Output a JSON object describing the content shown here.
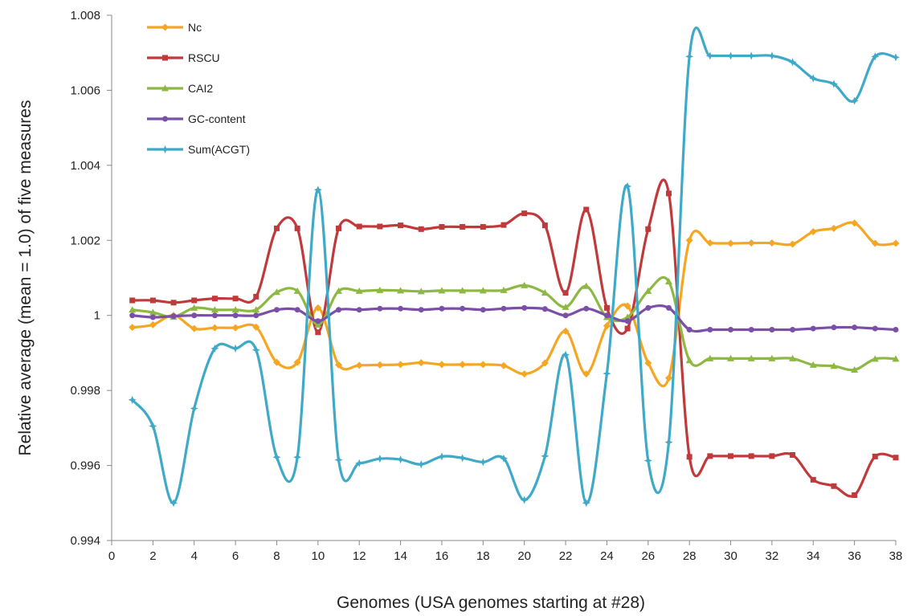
{
  "chart_data": {
    "type": "line",
    "xlabel": "Genomes (USA genomes starting at #28)",
    "ylabel": "Relative average (mean = 1.0) of five measures",
    "xlim": [
      0,
      38
    ],
    "ylim": [
      0.994,
      1.008
    ],
    "x_ticks": [
      "0",
      "2",
      "4",
      "6",
      "8",
      "10",
      "12",
      "14",
      "16",
      "18",
      "20",
      "22",
      "24",
      "26",
      "28",
      "30",
      "32",
      "34",
      "36",
      "38"
    ],
    "y_ticks": [
      "0.994",
      "0.996",
      "0.998",
      "1",
      "1.002",
      "1.004",
      "1.006",
      "1.008"
    ],
    "grid": false,
    "legend_position": "top-left",
    "x": [
      1,
      2,
      3,
      4,
      5,
      6,
      7,
      8,
      9,
      10,
      11,
      12,
      13,
      14,
      15,
      16,
      17,
      18,
      19,
      20,
      21,
      22,
      23,
      24,
      25,
      26,
      27,
      28,
      29,
      30,
      31,
      32,
      33,
      34,
      35,
      36,
      37,
      38
    ],
    "series": [
      {
        "name": "Nc",
        "color": "#F5A623",
        "marker": "diamond",
        "values": [
          0.99968,
          0.99975,
          1.0,
          0.99965,
          0.99967,
          0.99967,
          0.99969,
          0.99875,
          0.99875,
          1.0002,
          0.99868,
          0.99867,
          0.99868,
          0.99869,
          0.99874,
          0.99869,
          0.99869,
          0.99869,
          0.99866,
          0.99844,
          0.99873,
          0.99958,
          0.99844,
          0.99972,
          1.00025,
          0.99873,
          0.99833,
          1.002,
          1.00193,
          1.00192,
          1.00193,
          1.00193,
          1.0019,
          1.00223,
          1.00232,
          1.00246,
          1.00192,
          1.00192
        ]
      },
      {
        "name": "RSCU",
        "color": "#C0393B",
        "marker": "square",
        "values": [
          1.0004,
          1.0004,
          1.00034,
          1.0004,
          1.00045,
          1.00045,
          1.0005,
          1.00232,
          1.00232,
          0.99955,
          1.00232,
          1.00237,
          1.00237,
          1.0024,
          1.0023,
          1.00236,
          1.00236,
          1.00236,
          1.00241,
          1.00272,
          1.0024,
          1.0006,
          1.00282,
          1.0002,
          0.99965,
          1.0023,
          1.00325,
          0.99623,
          0.99625,
          0.99625,
          0.99625,
          0.99625,
          0.99628,
          0.99562,
          0.99545,
          0.99521,
          0.99624,
          0.99621
        ]
      },
      {
        "name": "CAI2",
        "color": "#8DB843",
        "marker": "triangle",
        "values": [
          1.00015,
          1.00008,
          0.99996,
          1.0002,
          1.00015,
          1.00015,
          1.00015,
          1.00062,
          1.00065,
          0.99975,
          1.00065,
          1.00065,
          1.00067,
          1.00066,
          1.00064,
          1.00066,
          1.00066,
          1.00066,
          1.00067,
          1.0008,
          1.0006,
          1.00022,
          1.00078,
          0.99995,
          0.99995,
          1.00065,
          1.0009,
          0.9988,
          0.99885,
          0.99885,
          0.99885,
          0.99885,
          0.99885,
          0.99868,
          0.99865,
          0.99855,
          0.99884,
          0.99884
        ]
      },
      {
        "name": "GC-content",
        "color": "#7B4FA8",
        "marker": "circle",
        "values": [
          1.0,
          0.99995,
          0.99998,
          1.0,
          1.0,
          1.0,
          1.0,
          1.00015,
          1.00015,
          0.99985,
          1.00015,
          1.00015,
          1.00018,
          1.00018,
          1.00015,
          1.00018,
          1.00018,
          1.00015,
          1.00018,
          1.0002,
          1.00017,
          1.0,
          1.00018,
          1.0,
          0.99985,
          1.0002,
          1.0002,
          0.99962,
          0.99962,
          0.99962,
          0.99962,
          0.99962,
          0.99962,
          0.99965,
          0.99968,
          0.99968,
          0.99965,
          0.99962
        ]
      },
      {
        "name": "Sum(ACGT)",
        "color": "#3FA9C8",
        "marker": "star",
        "values": [
          0.99775,
          0.99705,
          0.995,
          0.99752,
          0.99912,
          0.99912,
          0.99908,
          0.99622,
          0.99622,
          1.00335,
          0.99615,
          0.99606,
          0.99618,
          0.99616,
          0.99603,
          0.99624,
          0.9962,
          0.99609,
          0.99619,
          0.99508,
          0.99625,
          0.99895,
          0.995,
          0.99845,
          1.00344,
          0.99613,
          0.99662,
          1.0069,
          1.00692,
          1.00692,
          1.00692,
          1.00692,
          1.00675,
          1.00632,
          1.00617,
          1.00572,
          1.0069,
          1.00688
        ]
      }
    ]
  }
}
